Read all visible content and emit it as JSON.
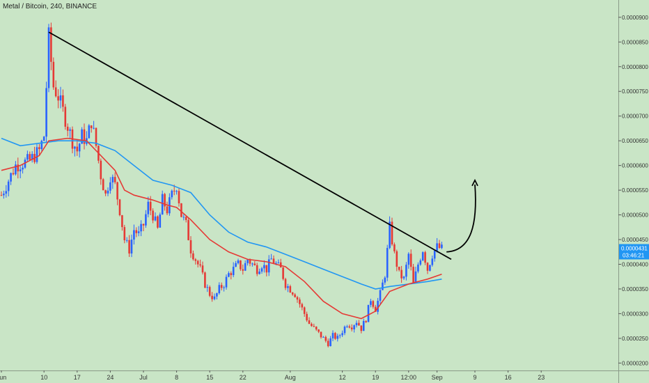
{
  "symbol_title": "Metal / Bitcoin, 240, BINANCE",
  "colors": {
    "background": "#c9e5c6",
    "up_candle": "#2962ff",
    "down_candle": "#e53935",
    "ma_fast": "#e53935",
    "ma_slow": "#2196f3",
    "trendline": "#000000",
    "price_label_bg": "#2196f3",
    "axis_text": "#333333"
  },
  "price_label": {
    "value": "0.0000431",
    "countdown": "03:46:21"
  },
  "chart_data": {
    "type": "line",
    "title": "Metal / Bitcoin, 240, BINANCE",
    "xlabel": "",
    "ylabel": "",
    "x_ticks": [
      {
        "label": "Jun",
        "d": 0
      },
      {
        "label": "10",
        "d": 9
      },
      {
        "label": "17",
        "d": 16
      },
      {
        "label": "24",
        "d": 23
      },
      {
        "label": "Jul",
        "d": 30
      },
      {
        "label": "8",
        "d": 37
      },
      {
        "label": "15",
        "d": 44
      },
      {
        "label": "22",
        "d": 51
      },
      {
        "label": "Aug",
        "d": 61
      },
      {
        "label": "12",
        "d": 72
      },
      {
        "label": "19",
        "d": 79
      },
      {
        "label": "12:00",
        "d": 86
      },
      {
        "label": "Sep",
        "d": 92
      },
      {
        "label": "9",
        "d": 100
      },
      {
        "label": "16",
        "d": 107
      },
      {
        "label": "23",
        "d": 114
      }
    ],
    "y_ticks": [
      "0.0000200",
      "0.0000250",
      "0.0000300",
      "0.0000350",
      "0.0000400",
      "0.0000450",
      "0.0000500",
      "0.0000550",
      "0.0000600",
      "0.0000650",
      "0.0000700",
      "0.0000750",
      "0.0000800",
      "0.0000850",
      "0.0000900"
    ],
    "ylim": [
      1.85e-05,
      9.35e-05
    ],
    "price_path": [
      [
        0,
        5.4e-05
      ],
      [
        3,
        6e-05
      ],
      [
        6,
        6.1e-05
      ],
      [
        8,
        6.3e-05
      ],
      [
        9,
        6.6e-05
      ],
      [
        10,
        8.6e-05
      ],
      [
        11,
        7.6e-05
      ],
      [
        12,
        7.4e-05
      ],
      [
        13,
        7.1e-05
      ],
      [
        14,
        6.8e-05
      ],
      [
        15,
        6.5e-05
      ],
      [
        16,
        6.3e-05
      ],
      [
        17,
        6.6e-05
      ],
      [
        18,
        6.5e-05
      ],
      [
        19,
        6.9e-05
      ],
      [
        20,
        6.4e-05
      ],
      [
        21,
        5.8e-05
      ],
      [
        22,
        5.4e-05
      ],
      [
        23,
        5.8e-05
      ],
      [
        24,
        5.6e-05
      ],
      [
        25,
        5.1e-05
      ],
      [
        26,
        4.5e-05
      ],
      [
        27,
        4.3e-05
      ],
      [
        28,
        4.7e-05
      ],
      [
        29,
        4.6e-05
      ],
      [
        30,
        4.8e-05
      ],
      [
        31,
        5.2e-05
      ],
      [
        32,
        5e-05
      ],
      [
        33,
        4.7e-05
      ],
      [
        34,
        5.3e-05
      ],
      [
        35,
        5.1e-05
      ],
      [
        36,
        5.4e-05
      ],
      [
        37,
        5.6e-05
      ],
      [
        38,
        5e-05
      ],
      [
        39,
        4.8e-05
      ],
      [
        40,
        4.3e-05
      ],
      [
        41,
        4.1e-05
      ],
      [
        42,
        3.9e-05
      ],
      [
        43,
        3.6e-05
      ],
      [
        44,
        3.4e-05
      ],
      [
        45,
        3.3e-05
      ],
      [
        46,
        3.5e-05
      ],
      [
        47,
        3.6e-05
      ],
      [
        48,
        3.8e-05
      ],
      [
        49,
        3.9e-05
      ],
      [
        50,
        4e-05
      ],
      [
        51,
        3.9e-05
      ],
      [
        52,
        4.1e-05
      ],
      [
        53,
        4e-05
      ],
      [
        54,
        3.9e-05
      ],
      [
        55,
        4e-05
      ],
      [
        56,
        3.9e-05
      ],
      [
        57,
        4.1e-05
      ],
      [
        58,
        4e-05
      ],
      [
        59,
        3.9e-05
      ],
      [
        60,
        3.6e-05
      ],
      [
        61,
        3.5e-05
      ],
      [
        62,
        3.4e-05
      ],
      [
        63,
        3.2e-05
      ],
      [
        64,
        3e-05
      ],
      [
        65,
        2.8e-05
      ],
      [
        66,
        2.7e-05
      ],
      [
        67,
        2.6e-05
      ],
      [
        68,
        2.5e-05
      ],
      [
        69,
        2.4e-05
      ],
      [
        70,
        2.55e-05
      ],
      [
        71,
        2.5e-05
      ],
      [
        72,
        2.65e-05
      ],
      [
        73,
        2.8e-05
      ],
      [
        74,
        2.75e-05
      ],
      [
        75,
        2.85e-05
      ],
      [
        76,
        2.7e-05
      ],
      [
        77,
        2.9e-05
      ],
      [
        78,
        3.3e-05
      ],
      [
        79,
        3.1e-05
      ],
      [
        80,
        3.4e-05
      ],
      [
        81,
        3.8e-05
      ],
      [
        82,
        4.75e-05
      ],
      [
        83,
        4.2e-05
      ],
      [
        84,
        3.8e-05
      ],
      [
        85,
        3.7e-05
      ],
      [
        86,
        4.2e-05
      ],
      [
        87,
        3.6e-05
      ],
      [
        88,
        4e-05
      ],
      [
        89,
        4.3e-05
      ],
      [
        90,
        3.9e-05
      ],
      [
        91,
        4.2e-05
      ],
      [
        92,
        4.35e-05
      ],
      [
        93,
        4.31e-05
      ]
    ],
    "ma_fast": [
      [
        0,
        5.9e-05
      ],
      [
        4,
        6e-05
      ],
      [
        8,
        6.2e-05
      ],
      [
        10,
        6.5e-05
      ],
      [
        14,
        6.55e-05
      ],
      [
        18,
        6.5e-05
      ],
      [
        20,
        6.3e-05
      ],
      [
        24,
        5.9e-05
      ],
      [
        26,
        5.5e-05
      ],
      [
        28,
        5.4e-05
      ],
      [
        32,
        5.3e-05
      ],
      [
        35,
        5.2e-05
      ],
      [
        37,
        5.15e-05
      ],
      [
        40,
        4.9e-05
      ],
      [
        44,
        4.5e-05
      ],
      [
        48,
        4.25e-05
      ],
      [
        52,
        4.1e-05
      ],
      [
        56,
        4.05e-05
      ],
      [
        60,
        3.95e-05
      ],
      [
        64,
        3.65e-05
      ],
      [
        68,
        3.25e-05
      ],
      [
        72,
        3e-05
      ],
      [
        76,
        2.9e-05
      ],
      [
        79,
        3.05e-05
      ],
      [
        82,
        3.45e-05
      ],
      [
        86,
        3.6e-05
      ],
      [
        90,
        3.7e-05
      ],
      [
        93,
        3.8e-05
      ]
    ],
    "ma_slow": [
      [
        0,
        6.55e-05
      ],
      [
        4,
        6.4e-05
      ],
      [
        8,
        6.45e-05
      ],
      [
        12,
        6.5e-05
      ],
      [
        16,
        6.5e-05
      ],
      [
        20,
        6.45e-05
      ],
      [
        24,
        6.3e-05
      ],
      [
        28,
        6e-05
      ],
      [
        32,
        5.7e-05
      ],
      [
        36,
        5.6e-05
      ],
      [
        40,
        5.45e-05
      ],
      [
        44,
        5e-05
      ],
      [
        48,
        4.65e-05
      ],
      [
        52,
        4.45e-05
      ],
      [
        56,
        4.35e-05
      ],
      [
        60,
        4.2e-05
      ],
      [
        64,
        4.05e-05
      ],
      [
        68,
        3.9e-05
      ],
      [
        72,
        3.75e-05
      ],
      [
        76,
        3.6e-05
      ],
      [
        79,
        3.5e-05
      ],
      [
        82,
        3.55e-05
      ],
      [
        86,
        3.6e-05
      ],
      [
        90,
        3.65e-05
      ],
      [
        93,
        3.7e-05
      ]
    ],
    "trendline": [
      [
        10,
        8.7e-05
      ],
      [
        95,
        4.1e-05
      ]
    ],
    "projection_arrow": [
      [
        94,
        4.25e-05
      ],
      [
        100,
        5.7e-05
      ]
    ],
    "grid": false,
    "legend": "none"
  }
}
